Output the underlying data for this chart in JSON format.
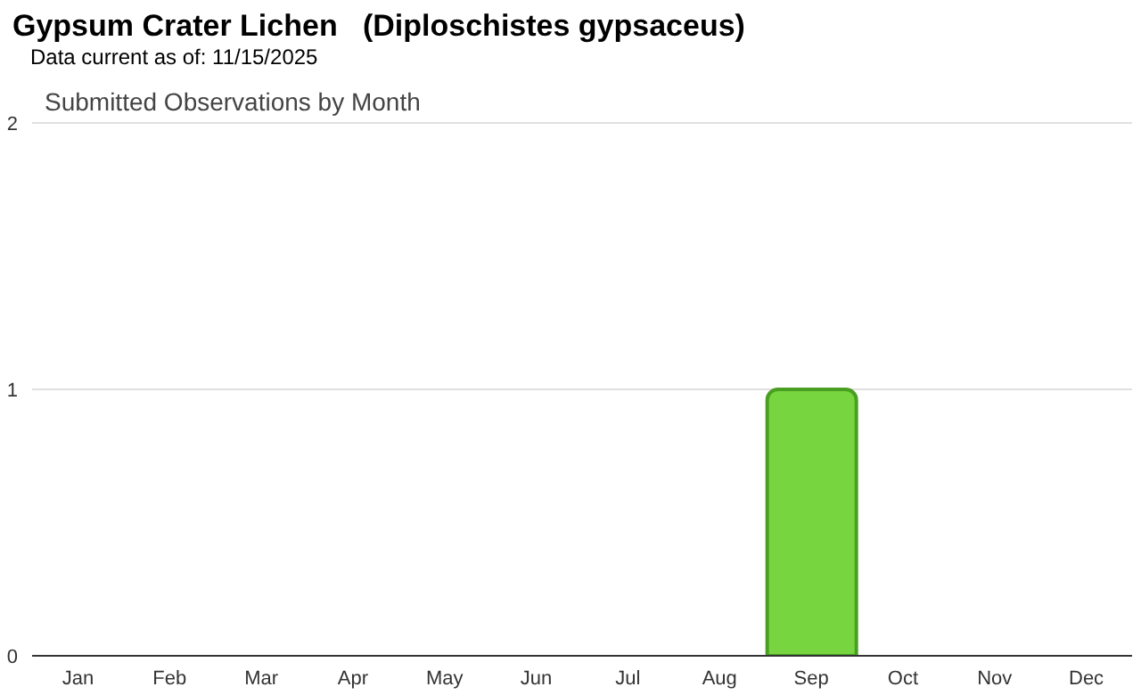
{
  "chart_data": {
    "type": "bar",
    "title": "Gypsum Crater Lichen   (Diploschistes gypsaceus)",
    "subtitle": "Data current as of: 11/15/2025",
    "annotations": [
      "Submitted Observations by Month"
    ],
    "categories": [
      "Jan",
      "Feb",
      "Mar",
      "Apr",
      "May",
      "Jun",
      "Jul",
      "Aug",
      "Sep",
      "Oct",
      "Nov",
      "Dec"
    ],
    "values": [
      0,
      0,
      0,
      0,
      0,
      0,
      0,
      0,
      1,
      0,
      0,
      0
    ],
    "color": "#77d63f",
    "ylim": [
      0,
      2
    ],
    "yticks": [
      0,
      1,
      2
    ],
    "grid": "y",
    "legend": false
  }
}
